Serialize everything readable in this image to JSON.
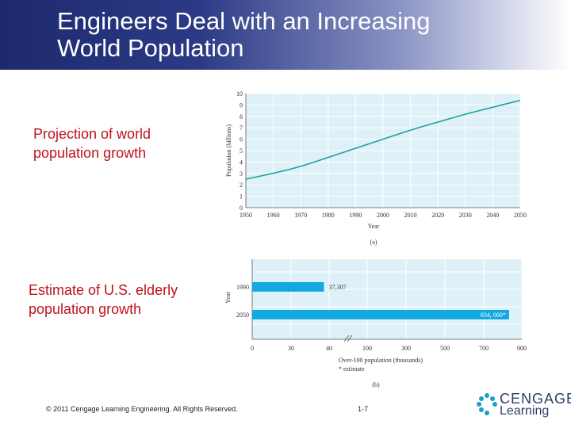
{
  "header": {
    "title_line1": "Engineers Deal with an Increasing",
    "title_line2": "World Population"
  },
  "captions": {
    "world_line1": "Projection of world",
    "world_line2": "population growth",
    "us_line1": "Estimate of U.S. elderly",
    "us_line2": "population growth"
  },
  "footer": {
    "copyright": "© 2011 Cengage Learning Engineering. All Rights Reserved.",
    "page": "1-7"
  },
  "logo": {
    "line1": "CENGAGE",
    "line2": "Learning"
  },
  "colors": {
    "accent": "#1aa0c8",
    "bar": "#12a8e0",
    "panel": "#dff1f8",
    "caption": "#c0121d"
  },
  "chart_data": [
    {
      "type": "line",
      "xlabel": "Year",
      "ylabel": "Population (billions)",
      "panel_label": "(a)",
      "x": [
        1950,
        1960,
        1970,
        1980,
        1990,
        2000,
        2010,
        2020,
        2030,
        2040,
        2050
      ],
      "xticks": [
        "1950",
        "1960",
        "1970",
        "1980",
        "1990",
        "2000",
        "2010",
        "2020",
        "2030",
        "2040",
        "2050"
      ],
      "yticks": [
        "0",
        "1",
        "2",
        "3",
        "4",
        "5",
        "6",
        "7",
        "8",
        "9",
        "10"
      ],
      "xlim": [
        1950,
        2050
      ],
      "ylim": [
        0,
        10
      ],
      "grid": true,
      "series": [
        {
          "values": [
            2.5,
            3.0,
            3.6,
            4.4,
            5.2,
            6.0,
            6.8,
            7.5,
            8.2,
            8.8,
            9.4
          ]
        }
      ]
    },
    {
      "type": "bar",
      "orientation": "horizontal",
      "xlabel": "Over-100 population (thousands)",
      "ylabel": "Year",
      "note": "* estimate",
      "panel_label": "(b)",
      "categories": [
        "1990",
        "2050"
      ],
      "values": [
        37307,
        834000
      ],
      "value_labels": [
        "37,307",
        "834, 000*"
      ],
      "xticks": [
        "0",
        "30",
        "40",
        "100",
        "300",
        "500",
        "700",
        "900"
      ],
      "axis_break": true,
      "grid": true
    }
  ]
}
